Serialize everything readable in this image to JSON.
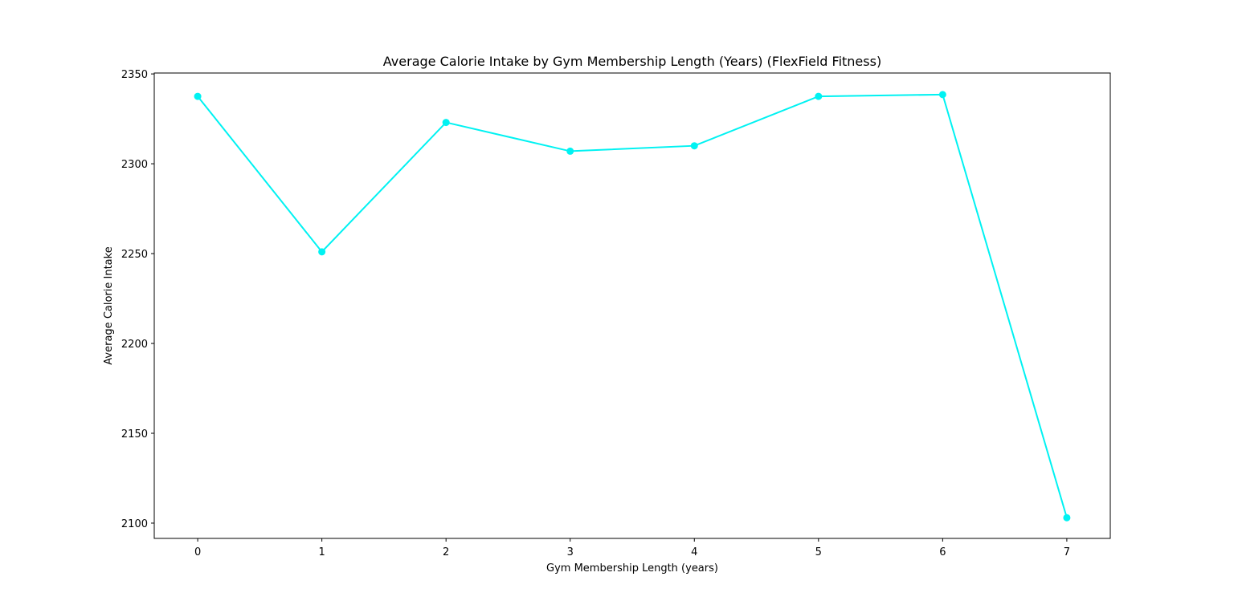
{
  "chart_data": {
    "type": "line",
    "title": "Average Calorie Intake by Gym Membership Length (Years) (FlexField Fitness)",
    "xlabel": "Gym Membership Length (years)",
    "ylabel": "Average Calorie Intake",
    "x": [
      0,
      1,
      2,
      3,
      4,
      5,
      6,
      7
    ],
    "series": [
      {
        "values": [
          2337.5,
          2251,
          2323,
          2307,
          2310,
          2337.5,
          2338.5,
          2103
        ]
      }
    ],
    "xlim": [
      -0.35,
      7.35
    ],
    "ylim": [
      2091.5,
      2350.5
    ],
    "xticks": [
      0,
      1,
      2,
      3,
      4,
      5,
      6,
      7
    ],
    "yticks": [
      2100,
      2150,
      2200,
      2250,
      2300,
      2350
    ],
    "grid": false,
    "line_color": "#00f2f2"
  }
}
